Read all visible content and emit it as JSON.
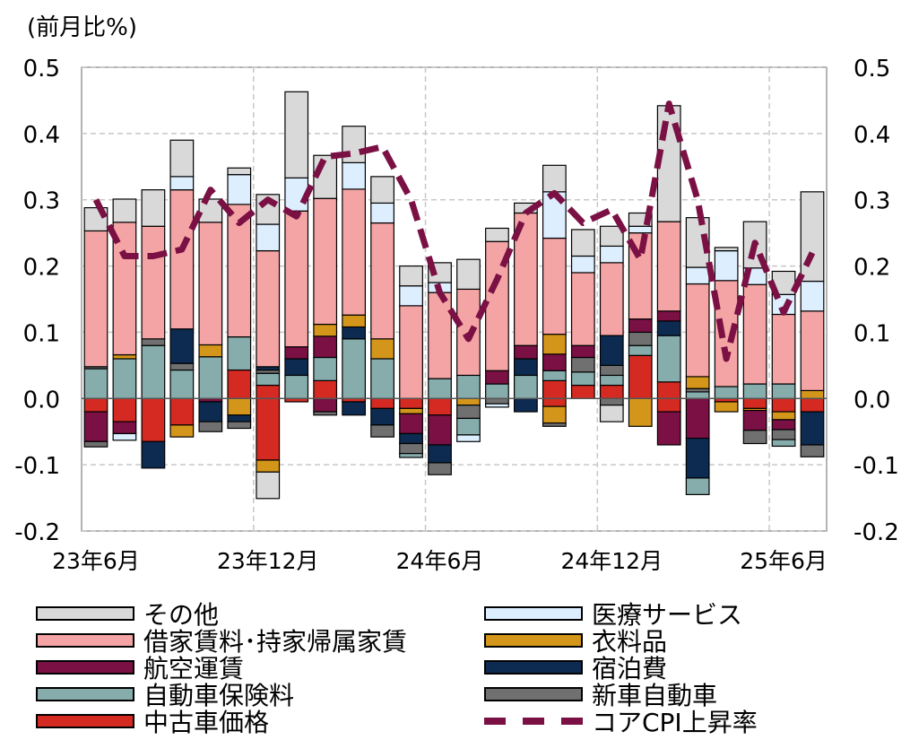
{
  "unit_label": "(前月比%)",
  "chart_data": {
    "type": "bar",
    "stacked": true,
    "ylim": [
      -0.2,
      0.5
    ],
    "y_ticks": [
      "0.5",
      "0.4",
      "0.3",
      "0.2",
      "0.1",
      "0.0",
      "-0.1",
      "-0.2"
    ],
    "x_tick_labels": [
      "23年6月",
      "23年12月",
      "24年6月",
      "24年12月",
      "25年6月"
    ],
    "grid": true,
    "categories": [
      "2023-06",
      "2023-07",
      "2023-08",
      "2023-09",
      "2023-10",
      "2023-11",
      "2023-12",
      "2024-01",
      "2024-02",
      "2024-03",
      "2024-04",
      "2024-05",
      "2024-06",
      "2024-07",
      "2024-08",
      "2024-09",
      "2024-10",
      "2024-11",
      "2024-12",
      "2025-01",
      "2025-02",
      "2025-03",
      "2025-04",
      "2025-05",
      "2025-06",
      "2025-07"
    ],
    "series": [
      {
        "name": "その他",
        "color": "#d9d9d9",
        "values": [
          0.035,
          0.035,
          0.055,
          0.055,
          0.035,
          0.01,
          0.045,
          0.13,
          0.065,
          0.055,
          0.04,
          0.03,
          0.03,
          0.045,
          0.02,
          0.015,
          0.04,
          0.04,
          0.03,
          0.02,
          0.175,
          0.075,
          0.005,
          0.07,
          0.035,
          0.135
        ]
      },
      {
        "name": "医療サービス",
        "color": "#ddeeff",
        "values": [
          0,
          0,
          0,
          0.02,
          0,
          0.045,
          0.04,
          0.05,
          0,
          0.04,
          0.03,
          0.03,
          0.015,
          0,
          0,
          0,
          0.07,
          0.025,
          0.025,
          0.01,
          0,
          0.025,
          0.045,
          0.025,
          0.03,
          0.045
        ]
      },
      {
        "name": "借家賃料･持家帰属家賃",
        "color": "#f4a4a4",
        "values": [
          0.205,
          0.2,
          0.17,
          0.21,
          0.185,
          0.2,
          0.175,
          0.205,
          0.19,
          0.19,
          0.175,
          0.14,
          0.13,
          0.13,
          0.195,
          0.2,
          0.145,
          0.11,
          0.11,
          0.13,
          0.135,
          0.14,
          0.16,
          0.15,
          0.105,
          0.12
        ]
      },
      {
        "name": "衣料品",
        "color": "#d4961a",
        "values": [
          0,
          0.006,
          0,
          0,
          0.018,
          0,
          0,
          0,
          0.018,
          0.018,
          0.03,
          0,
          0,
          0,
          0,
          0,
          0.03,
          0,
          0,
          0,
          0,
          0.018,
          0,
          0,
          0,
          0.012
        ]
      },
      {
        "name": "航空運賃",
        "color": "#7a1043",
        "values": [
          0,
          0,
          0,
          0,
          0,
          0,
          0,
          0.018,
          0.032,
          0,
          0,
          0,
          0,
          0,
          0.02,
          0.02,
          0.025,
          0.018,
          0,
          0.02,
          0.015,
          0,
          0,
          0,
          0,
          0
        ]
      },
      {
        "name": "宿泊費",
        "color": "#0d2b50",
        "values": [
          0,
          0,
          0,
          0.052,
          0,
          0,
          0.005,
          0.025,
          0,
          0.018,
          0,
          0,
          0,
          0,
          0,
          0.025,
          0,
          0,
          0.045,
          0,
          0.022,
          0,
          0,
          0,
          0,
          0
        ]
      },
      {
        "name": "新車自動車",
        "color": "#707070",
        "values": [
          0.003,
          0,
          0.01,
          0.01,
          0,
          0,
          0.005,
          0,
          0,
          0,
          0,
          0,
          0,
          0,
          0,
          0,
          0,
          0.022,
          0.015,
          0.02,
          0,
          0.005,
          0,
          0,
          0,
          0
        ]
      },
      {
        "name": "自動車保険料",
        "color": "#86acac",
        "values": [
          0.045,
          0.06,
          0.08,
          0.043,
          0.063,
          0.05,
          0.018,
          0.035,
          0.035,
          0.09,
          0.06,
          0,
          0.03,
          0.035,
          0.022,
          0.035,
          0.015,
          0.02,
          0.015,
          0.015,
          0.07,
          0.01,
          0.018,
          0.022,
          0.022,
          0
        ]
      },
      {
        "name": "中古車価格",
        "color": "#d42a22",
        "values": [
          0,
          0,
          0,
          0,
          0,
          0.043,
          0.02,
          0,
          0.027,
          0,
          0,
          0,
          0,
          0,
          0,
          0,
          0.027,
          0.02,
          0.02,
          0.065,
          0.025,
          0,
          0,
          0,
          0,
          0
        ]
      }
    ],
    "negatives": [
      {
        "name": "中古車価格",
        "color": "#d42a22",
        "values": [
          -0.02,
          -0.035,
          -0.065,
          -0.04,
          0,
          0,
          -0.093,
          -0.005,
          0,
          -0.005,
          -0.015,
          -0.015,
          -0.025,
          0,
          0,
          0,
          -0.012,
          0,
          0,
          0,
          -0.02,
          0,
          -0.005,
          -0.015,
          -0.02,
          -0.02
        ]
      },
      {
        "name": "衣料品",
        "color": "#d4961a",
        "values": [
          0,
          0,
          0,
          -0.018,
          0,
          -0.025,
          -0.018,
          0,
          0,
          0,
          0,
          -0.008,
          0,
          -0.01,
          0,
          0,
          -0.025,
          0,
          0,
          -0.042,
          0,
          0,
          -0.015,
          -0.003,
          -0.012,
          0
        ]
      },
      {
        "name": "航空運賃",
        "color": "#7a1043",
        "values": [
          -0.045,
          -0.018,
          0,
          0,
          -0.005,
          0,
          0,
          0,
          -0.02,
          0,
          0,
          -0.03,
          -0.045,
          0,
          0,
          0,
          0,
          0,
          0,
          0,
          -0.05,
          -0.06,
          0,
          -0.03,
          -0.015,
          0
        ]
      },
      {
        "name": "宿泊費",
        "color": "#0d2b50",
        "values": [
          0,
          0,
          -0.04,
          0,
          -0.03,
          -0.01,
          0,
          0,
          0,
          -0.02,
          -0.025,
          -0.015,
          -0.027,
          0,
          0,
          -0.02,
          0,
          0,
          0,
          0,
          0,
          -0.06,
          0,
          0,
          0,
          -0.05
        ]
      },
      {
        "name": "新車自動車",
        "color": "#707070",
        "values": [
          -0.008,
          0,
          0,
          0,
          -0.015,
          -0.01,
          0,
          0,
          -0.005,
          0,
          -0.018,
          -0.015,
          -0.018,
          -0.02,
          -0.008,
          0,
          -0.005,
          0,
          -0.01,
          0,
          0,
          0,
          0,
          -0.02,
          -0.015,
          -0.018
        ]
      },
      {
        "name": "自動車保険料",
        "color": "#86acac",
        "values": [
          0,
          0,
          0,
          0,
          0,
          0,
          0,
          0,
          0,
          0,
          0,
          -0.006,
          0,
          -0.025,
          0,
          0,
          0,
          0,
          0,
          0,
          0,
          -0.025,
          0,
          0,
          -0.01,
          0
        ]
      },
      {
        "name": "医療サービス",
        "color": "#ddeeff",
        "values": [
          0,
          -0.01,
          0,
          0,
          0,
          0,
          0,
          0,
          0,
          0,
          0,
          0,
          0,
          -0.01,
          -0.005,
          0,
          0,
          0,
          0,
          0,
          0,
          0,
          0,
          0,
          0,
          0
        ]
      },
      {
        "name": "その他",
        "color": "#d9d9d9",
        "values": [
          0,
          0,
          0,
          0,
          0,
          0,
          -0.04,
          0,
          0,
          0,
          0,
          0,
          0,
          0,
          0,
          0,
          0,
          0,
          -0.025,
          0,
          0,
          0,
          0,
          0,
          0,
          0
        ]
      }
    ],
    "line": {
      "name": "コアCPI上昇率",
      "color": "#7a1043",
      "values": [
        0.3,
        0.215,
        0.215,
        0.225,
        0.315,
        0.265,
        0.3,
        0.275,
        0.365,
        0.37,
        0.38,
        0.3,
        0.16,
        0.09,
        0.18,
        0.28,
        0.31,
        0.265,
        0.285,
        0.21,
        0.445,
        0.3,
        0.06,
        0.235,
        0.13,
        0.22
      ]
    },
    "legend": [
      {
        "name": "その他",
        "color": "#d9d9d9",
        "kind": "bar"
      },
      {
        "name": "医療サービス",
        "color": "#ddeeff",
        "kind": "bar"
      },
      {
        "name": "借家賃料･持家帰属家賃",
        "color": "#f4a4a4",
        "kind": "bar"
      },
      {
        "name": "衣料品",
        "color": "#d4961a",
        "kind": "bar"
      },
      {
        "name": "航空運賃",
        "color": "#7a1043",
        "kind": "bar"
      },
      {
        "name": "宿泊費",
        "color": "#0d2b50",
        "kind": "bar"
      },
      {
        "name": "自動車保険料",
        "color": "#86acac",
        "kind": "bar"
      },
      {
        "name": "新車自動車",
        "color": "#707070",
        "kind": "bar"
      },
      {
        "name": "中古車価格",
        "color": "#d42a22",
        "kind": "bar"
      },
      {
        "name": "コアCPI上昇率",
        "color": "#7a1043",
        "kind": "line"
      }
    ]
  }
}
